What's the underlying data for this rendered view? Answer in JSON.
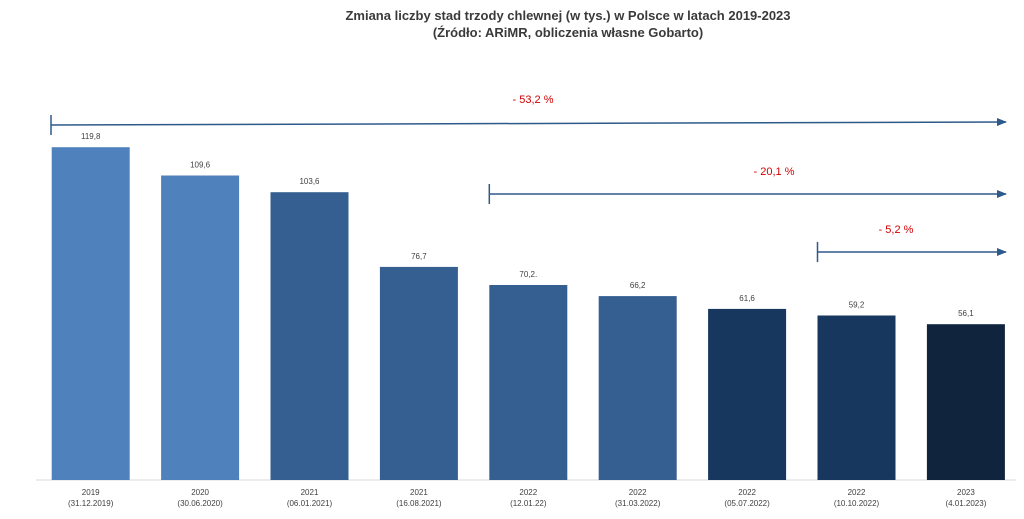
{
  "chart_data": {
    "type": "bar",
    "title": "Zmiana liczby stad trzody chlewnej (w tys.) w Polsce w latach 2019-2023",
    "subtitle": "(Źródło: ARiMR, obliczenia własne Gobarto)",
    "categories": [
      {
        "year": "2019",
        "date": "(31.12.2019)"
      },
      {
        "year": "2020",
        "date": "(30.06.2020)"
      },
      {
        "year": "2021",
        "date": "(06.01.2021)"
      },
      {
        "year": "2021",
        "date": "(16.08.2021)"
      },
      {
        "year": "2022",
        "date": "(12.01.22)"
      },
      {
        "year": "2022",
        "date": "(31.03.2022)"
      },
      {
        "year": "2022",
        "date": "(05.07.2022)"
      },
      {
        "year": "2022",
        "date": "(10.10.2022)"
      },
      {
        "year": "2023",
        "date": "(4.01.2023)"
      }
    ],
    "values": [
      119.8,
      109.6,
      103.6,
      76.7,
      70.2,
      66.2,
      61.6,
      59.2,
      56.1
    ],
    "value_labels": [
      "119,8",
      "109,6",
      "103,6",
      "76,7",
      "70,2.",
      "66,2",
      "61,6",
      "59,2",
      "56,1"
    ],
    "bar_colors": [
      "#4f81bd",
      "#4f81bd",
      "#365f91",
      "#365f91",
      "#365f91",
      "#365f91",
      "#17375e",
      "#17375e",
      "#10243e"
    ],
    "ylim": [
      0,
      125
    ],
    "grid": false,
    "legend": "none",
    "annotations": [
      {
        "label": "- 53,2 %",
        "from_index": 0
      },
      {
        "label": "- 20,1 %",
        "from_index": 4
      },
      {
        "label": "- 5,2 %",
        "from_index": 7
      }
    ],
    "colors": {
      "annotation_text": "#d40000",
      "annotation_arrow": "#2e5a8a",
      "axis": "#d9d9d9"
    }
  }
}
